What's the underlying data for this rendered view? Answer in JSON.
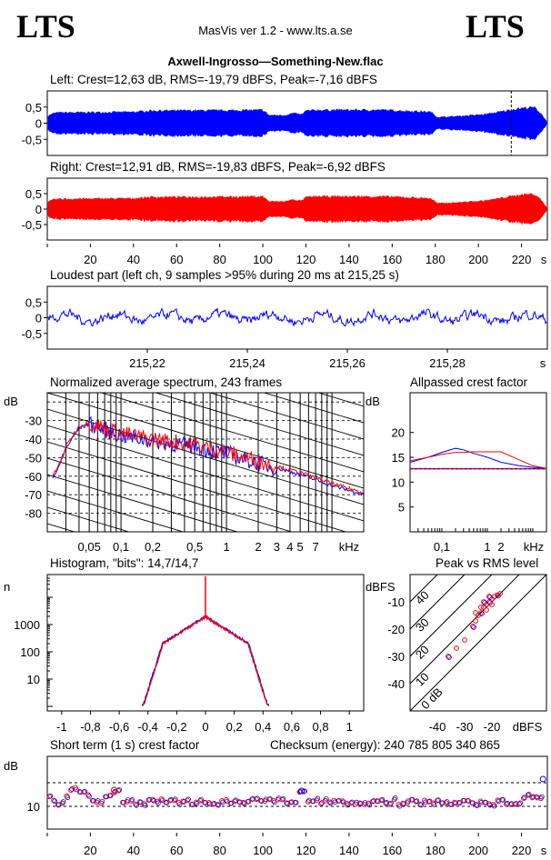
{
  "header": {
    "logo_left": "LTS",
    "logo_right": "LTS",
    "app": "MasVis ver 1.2 - www.lts.a.se",
    "file_title": "Axwell-Ingrosso—Something-New.flac"
  },
  "colors": {
    "left": "#0000ff",
    "right": "#ff0000",
    "grid": "#000000"
  },
  "chart_data": [
    {
      "id": "left_wave",
      "type": "area",
      "title": "Left: Crest=12,63 dB, RMS=-19,79 dBFS, Peak=-7,16 dBFS",
      "channel": "left",
      "yticks": [
        "0,5",
        "0",
        "-0,5"
      ],
      "ylim": [
        -1,
        1
      ],
      "xlim": [
        0,
        232
      ],
      "marker_x": 215.25,
      "envelope": {
        "t": [
          0,
          3,
          5,
          40,
          48,
          88,
          100,
          103,
          110,
          114,
          118,
          120,
          122,
          125,
          156,
          178,
          181,
          188,
          202,
          206,
          220,
          226,
          229,
          232
        ],
        "amp": [
          0.22,
          0.3,
          0.32,
          0.34,
          0.38,
          0.39,
          0.4,
          0.24,
          0.24,
          0.3,
          0.26,
          0.38,
          0.38,
          0.4,
          0.4,
          0.34,
          0.18,
          0.2,
          0.26,
          0.3,
          0.46,
          0.48,
          0.3,
          0.02
        ]
      }
    },
    {
      "id": "right_wave",
      "type": "area",
      "title": "Right: Crest=12,91 dB, RMS=-19,83 dBFS, Peak=-6,92 dBFS",
      "channel": "right",
      "yticks": [
        "0,5",
        "0",
        "-0,5"
      ],
      "ylim": [
        -1,
        1
      ],
      "xlim": [
        0,
        232
      ],
      "xticks": [
        "20",
        "40",
        "60",
        "80",
        "100",
        "120",
        "140",
        "160",
        "180",
        "200",
        "220"
      ],
      "xunit": "s",
      "envelope": {
        "t": [
          0,
          3,
          5,
          40,
          48,
          88,
          100,
          103,
          110,
          114,
          118,
          120,
          122,
          125,
          156,
          178,
          181,
          188,
          202,
          206,
          220,
          226,
          229,
          232
        ],
        "amp": [
          0.22,
          0.3,
          0.32,
          0.34,
          0.38,
          0.39,
          0.4,
          0.24,
          0.24,
          0.3,
          0.26,
          0.38,
          0.38,
          0.4,
          0.4,
          0.34,
          0.18,
          0.2,
          0.26,
          0.3,
          0.46,
          0.48,
          0.3,
          0.02
        ]
      }
    },
    {
      "id": "loudest",
      "type": "line",
      "title": "Loudest part (left  ch, 9 samples >95% during 20 ms at 215,25 s)",
      "yticks": [
        "0,5",
        "0",
        "-0,5"
      ],
      "ylim": [
        -1,
        1
      ],
      "xticks": [
        "215,22",
        "215,24",
        "215,26",
        "215,28"
      ],
      "xunit": "s",
      "xlim": [
        215.2,
        215.3
      ]
    },
    {
      "id": "spectrum",
      "type": "line",
      "title": "Normalized average spectrum, 243 frames",
      "ylabel": "dB",
      "yticks": [
        "-30",
        "-40",
        "-50",
        "-60",
        "-70",
        "-80"
      ],
      "ylim": [
        -90,
        -15
      ],
      "xticks": [
        "0,05",
        "0,1",
        "0,2",
        "0,5",
        "1",
        "2",
        "3",
        "4",
        "5",
        "7"
      ],
      "xunit": "kHz",
      "xscale": "log",
      "xlim": [
        0.02,
        20
      ],
      "series": [
        {
          "color": "#0000ff",
          "x": [
            0.02,
            0.025,
            0.03,
            0.04,
            0.05,
            0.07,
            0.1,
            0.2,
            0.5,
            1,
            2,
            5,
            10,
            20
          ],
          "y": [
            -64,
            -57,
            -45,
            -34,
            -32,
            -35,
            -38,
            -41,
            -44,
            -48,
            -53,
            -59,
            -65,
            -70
          ]
        },
        {
          "color": "#ff0000",
          "x": [
            0.02,
            0.025,
            0.03,
            0.04,
            0.05,
            0.07,
            0.1,
            0.2,
            0.5,
            1,
            2,
            5,
            10,
            20
          ],
          "y": [
            -63,
            -56,
            -44,
            -33,
            -31,
            -34,
            -37,
            -40,
            -43,
            -47,
            -52,
            -58,
            -64,
            -69
          ]
        }
      ]
    },
    {
      "id": "allpassed",
      "type": "line",
      "title": "Allpassed crest factor",
      "ylabel": "dB",
      "yticks": [
        "20",
        "15",
        "10",
        "5"
      ],
      "ylim": [
        0,
        28
      ],
      "xticks": [
        "0,1",
        "1",
        "2",
        "kHz"
      ],
      "xscale": "log",
      "xlim": [
        0.02,
        20
      ],
      "reference": 12.7,
      "series": [
        {
          "color": "#0000ff",
          "x": [
            0.02,
            0.05,
            0.1,
            0.2,
            0.3,
            0.5,
            1,
            2,
            5,
            10,
            20
          ],
          "y": [
            14,
            15,
            16,
            16.8,
            16.5,
            15.8,
            15,
            14,
            13.3,
            13,
            12.8
          ]
        },
        {
          "color": "#ff0000",
          "x": [
            0.02,
            0.05,
            0.1,
            0.2,
            0.3,
            0.5,
            1,
            2,
            5,
            10,
            20
          ],
          "y": [
            14.3,
            15,
            15.6,
            16,
            16,
            16.1,
            16.1,
            16.1,
            14.5,
            13.3,
            12.8
          ]
        }
      ]
    },
    {
      "id": "histogram",
      "type": "line",
      "title": "Histogram, \"bits\": 14,7/14,7",
      "ylabel": "n",
      "yticks": [
        "1000",
        "100",
        "10"
      ],
      "yscale": "log",
      "xticks": [
        "-1",
        "-0,8",
        "-0,6",
        "-0,4",
        "-0,2",
        "0",
        "0,2",
        "0,4",
        "0,6",
        "0,8",
        "1"
      ],
      "xlim": [
        -1.1,
        1.1
      ]
    },
    {
      "id": "peak_rms",
      "type": "scatter",
      "title": "Peak vs RMS level",
      "ylabel": "dBFS",
      "yticks": [
        "-10",
        "-20",
        "-30",
        "-40"
      ],
      "ylim": [
        -50,
        0
      ],
      "xticks": [
        "-40",
        "-30",
        "-20",
        "dBFS"
      ],
      "xlim": [
        -50,
        0
      ],
      "diagonal_labels": [
        "40",
        "30",
        "20",
        "10",
        "0 dB"
      ],
      "points": [
        [
          -36,
          -30
        ],
        [
          -33,
          -27
        ],
        [
          -30,
          -24
        ],
        [
          -27,
          -19
        ],
        [
          -26,
          -17
        ],
        [
          -25,
          -15
        ],
        [
          -24,
          -14
        ],
        [
          -23,
          -12
        ],
        [
          -22,
          -11
        ],
        [
          -21,
          -10
        ],
        [
          -20,
          -9
        ],
        [
          -19,
          -8
        ],
        [
          -18,
          -7.5
        ],
        [
          -17,
          -7
        ],
        [
          -24,
          -12
        ],
        [
          -23,
          -10
        ],
        [
          -22,
          -13
        ],
        [
          -26,
          -14
        ],
        [
          -21,
          -8
        ],
        [
          -20,
          -11
        ]
      ]
    },
    {
      "id": "short_crest",
      "type": "scatter",
      "title": "Short term (1 s) crest factor",
      "checksum": "Checksum (energy):   240 785 805 340 865",
      "ylabel": "dB",
      "yticks": [
        "10"
      ],
      "xticks": [
        "20",
        "40",
        "60",
        "80",
        "100",
        "120",
        "140",
        "160",
        "180",
        "200",
        "220"
      ],
      "xunit": "s",
      "xlim": [
        0,
        232
      ]
    }
  ]
}
